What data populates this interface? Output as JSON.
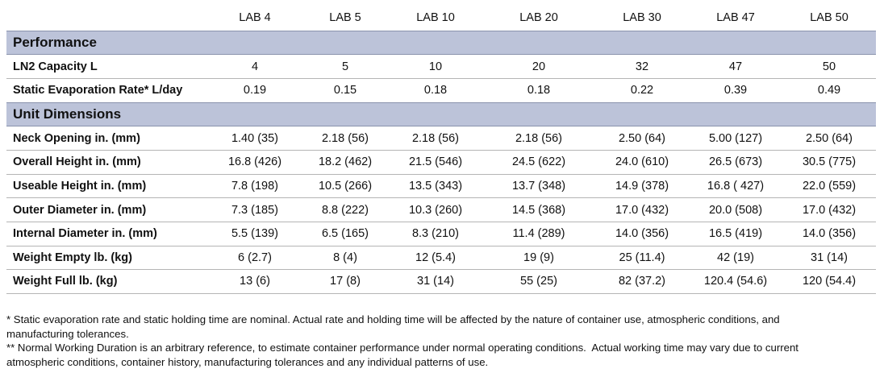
{
  "table": {
    "columns": [
      "LAB 4",
      "LAB 5",
      "LAB 10",
      "LAB 20",
      "LAB 30",
      "LAB 47",
      "LAB 50"
    ],
    "sections": [
      {
        "title": "Performance",
        "rows": [
          {
            "label": "LN2 Capacity L",
            "cells": [
              "4",
              "5",
              "10",
              "20",
              "32",
              "47",
              "50"
            ]
          },
          {
            "label": "Static Evaporation Rate* L/day",
            "cells": [
              "0.19",
              "0.15",
              "0.18",
              "0.18",
              "0.22",
              "0.39",
              "0.49"
            ]
          }
        ]
      },
      {
        "title": "Unit Dimensions",
        "rows": [
          {
            "label": "Neck Opening in. (mm)",
            "cells": [
              "1.40 (35)",
              "2.18 (56)",
              "2.18 (56)",
              "2.18 (56)",
              "2.50 (64)",
              "5.00 (127)",
              "2.50 (64)"
            ]
          },
          {
            "label": "Overall Height in. (mm)",
            "cells": [
              "16.8 (426)",
              "18.2 (462)",
              "21.5 (546)",
              "24.5 (622)",
              "24.0 (610)",
              "26.5 (673)",
              "30.5 (775)"
            ]
          },
          {
            "label": "Useable Height in. (mm)",
            "cells": [
              "7.8 (198)",
              "10.5 (266)",
              "13.5 (343)",
              "13.7 (348)",
              "14.9 (378)",
              "16.8 ( 427)",
              "22.0 (559)"
            ]
          },
          {
            "label": "Outer Diameter in. (mm)",
            "cells": [
              "7.3 (185)",
              "8.8 (222)",
              "10.3 (260)",
              "14.5 (368)",
              "17.0 (432)",
              "20.0 (508)",
              "17.0 (432)"
            ]
          },
          {
            "label": "Internal Diameter in. (mm)",
            "cells": [
              "5.5 (139)",
              "6.5 (165)",
              "8.3 (210)",
              "11.4 (289)",
              "14.0 (356)",
              "16.5 (419)",
              "14.0 (356)"
            ]
          },
          {
            "label": "Weight Empty lb. (kg)",
            "cells": [
              "6 (2.7)",
              "8 (4)",
              "12 (5.4)",
              "19 (9)",
              "25 (11.4)",
              "42 (19)",
              "31 (14)"
            ]
          },
          {
            "label": "Weight Full lb. (kg)",
            "cells": [
              "13 (6)",
              "17 (8)",
              "31 (14)",
              "55 (25)",
              "82 (37.2)",
              "120.4 (54.6)",
              "120 (54.4)"
            ]
          }
        ]
      }
    ]
  },
  "footnotes": [
    "* Static evaporation rate and static holding time are nominal. Actual rate and holding time will be affected by the nature of container use, atmospheric conditions, and manufacturing tolerances.",
    "** Normal Working Duration is an arbitrary reference, to estimate container performance under normal operating conditions.  Actual working time may vary due to current atmospheric conditions, container history, manufacturing tolerances and any individual patterns of use."
  ]
}
